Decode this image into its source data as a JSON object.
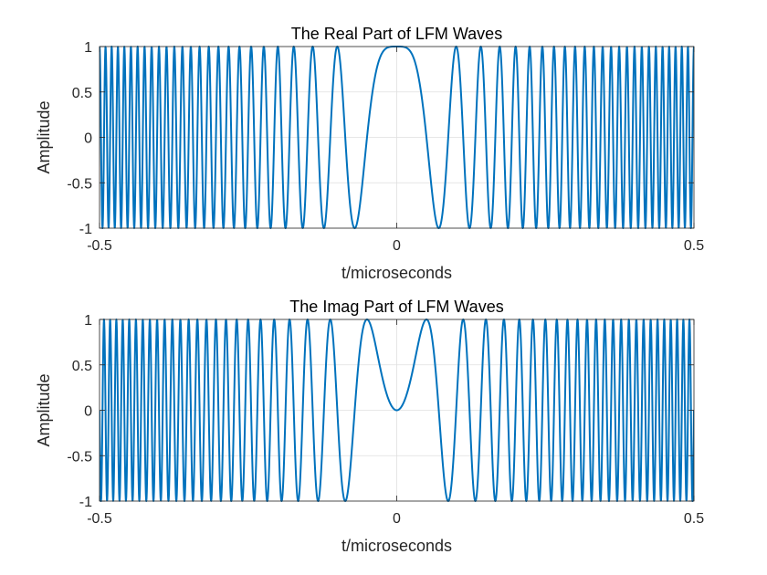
{
  "chart_data": [
    {
      "type": "line",
      "title": "The Real Part of LFM Waves",
      "xlabel": "t/microseconds",
      "ylabel": "Amplitude",
      "xlim": [
        -0.5,
        0.5
      ],
      "ylim": [
        -1,
        1
      ],
      "xticks": [
        -0.5,
        0,
        0.5
      ],
      "xtick_labels": [
        "-0.5",
        "0",
        "0.5"
      ],
      "yticks": [
        -1,
        -0.5,
        0,
        0.5,
        1
      ],
      "ytick_labels": [
        "-1",
        "-0.5",
        "0",
        "0.5",
        "1"
      ],
      "grid": true,
      "color": "#0072BD",
      "series": [
        {
          "function": "cos(pi*k*t^2)",
          "k": 200,
          "t_range": [
            -0.5,
            0.5
          ],
          "samples": 2400
        }
      ]
    },
    {
      "type": "line",
      "title": "The Imag Part of LFM Waves",
      "xlabel": "t/microseconds",
      "ylabel": "Amplitude",
      "xlim": [
        -0.5,
        0.5
      ],
      "ylim": [
        -1,
        1
      ],
      "xticks": [
        -0.5,
        0,
        0.5
      ],
      "xtick_labels": [
        "-0.5",
        "0",
        "0.5"
      ],
      "yticks": [
        -1,
        -0.5,
        0,
        0.5,
        1
      ],
      "ytick_labels": [
        "-1",
        "-0.5",
        "0",
        "0.5",
        "1"
      ],
      "grid": true,
      "color": "#0072BD",
      "series": [
        {
          "function": "sin(pi*k*t^2)",
          "k": 200,
          "t_range": [
            -0.5,
            0.5
          ],
          "samples": 2400
        }
      ]
    }
  ]
}
